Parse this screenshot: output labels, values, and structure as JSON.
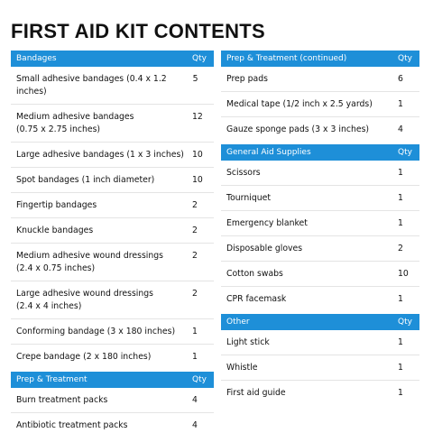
{
  "title": "FIRST AID KIT CONTENTS",
  "columns": [
    {
      "sections": [
        {
          "title": "Bandages",
          "qty_label": "Qty",
          "items": [
            {
              "name": "Small adhesive bandages (0.4 x 1.2 inches)",
              "qty": 5
            },
            {
              "name": "Medium adhesive bandages\n(0.75 x 2.75 inches)",
              "qty": 12
            },
            {
              "name": "Large adhesive bandages (1 x 3 inches)",
              "qty": 10
            },
            {
              "name": "Spot bandages (1 inch diameter)",
              "qty": 10
            },
            {
              "name": "Fingertip bandages",
              "qty": 2
            },
            {
              "name": "Knuckle bandages",
              "qty": 2
            },
            {
              "name": "Medium adhesive wound dressings\n(2.4 x 0.75 inches)",
              "qty": 2
            },
            {
              "name": "Large adhesive wound dressings\n(2.4 x 4 inches)",
              "qty": 2
            },
            {
              "name": "Conforming bandage (3 x 180 inches)",
              "qty": 1
            },
            {
              "name": "Crepe bandage (2 x 180 inches)",
              "qty": 1
            }
          ]
        },
        {
          "title": "Prep & Treatment",
          "qty_label": "Qty",
          "items": [
            {
              "name": "Burn treatment packs",
              "qty": 4
            },
            {
              "name": "Antibiotic treatment packs",
              "qty": 4
            }
          ]
        }
      ]
    },
    {
      "sections": [
        {
          "title": "Prep & Treatment (continued)",
          "qty_label": "Qty",
          "items": [
            {
              "name": "Prep pads",
              "qty": 6
            },
            {
              "name": "Medical tape (1/2 inch x 2.5 yards)",
              "qty": 1
            },
            {
              "name": "Gauze sponge pads (3 x 3 inches)",
              "qty": 4
            }
          ]
        },
        {
          "title": "General Aid Supplies",
          "qty_label": "Qty",
          "items": [
            {
              "name": "Scissors",
              "qty": 1
            },
            {
              "name": "Tourniquet",
              "qty": 1
            },
            {
              "name": "Emergency blanket",
              "qty": 1
            },
            {
              "name": "Disposable gloves",
              "qty": 2
            },
            {
              "name": "Cotton swabs",
              "qty": 10
            },
            {
              "name": "CPR facemask",
              "qty": 1
            }
          ]
        },
        {
          "title": "Other",
          "qty_label": "Qty",
          "items": [
            {
              "name": "Light stick",
              "qty": 1
            },
            {
              "name": "Whistle",
              "qty": 1
            },
            {
              "name": "First aid guide",
              "qty": 1
            }
          ]
        }
      ]
    }
  ]
}
